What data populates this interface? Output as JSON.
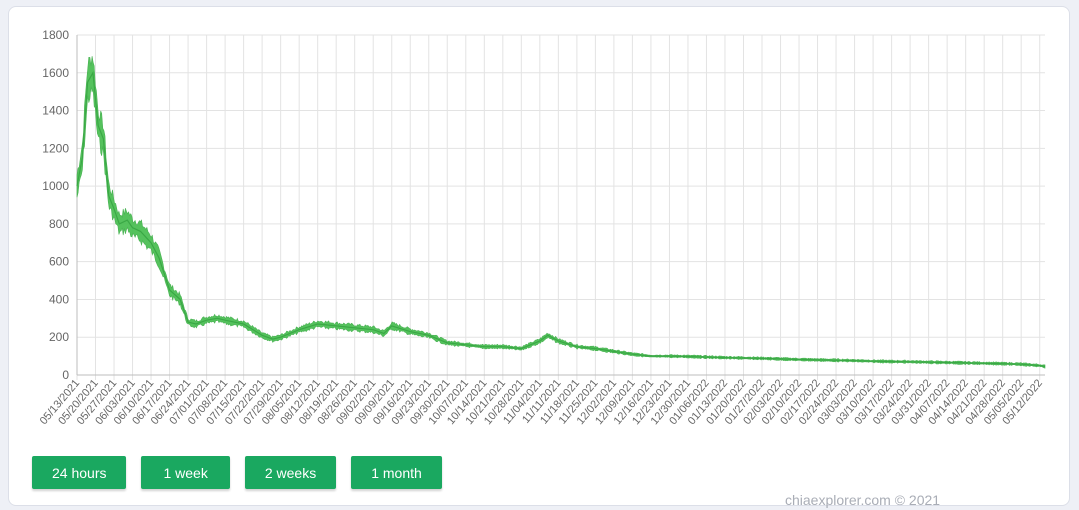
{
  "chart_data": {
    "type": "area",
    "ylim": [
      0,
      1800
    ],
    "yticks": [
      0,
      200,
      400,
      600,
      800,
      1000,
      1200,
      1400,
      1600,
      1800
    ],
    "xticks": [
      "05/13/2021",
      "05/20/2021",
      "05/27/2021",
      "06/03/2021",
      "06/10/2021",
      "06/17/2021",
      "06/24/2021",
      "07/01/2021",
      "07/08/2021",
      "07/15/2021",
      "07/22/2021",
      "07/29/2021",
      "08/05/2021",
      "08/12/2021",
      "08/19/2021",
      "08/26/2021",
      "09/02/2021",
      "09/09/2021",
      "09/16/2021",
      "09/23/2021",
      "09/30/2021",
      "10/07/2021",
      "10/14/2021",
      "10/21/2021",
      "10/28/2021",
      "11/04/2021",
      "11/11/2021",
      "11/18/2021",
      "11/25/2021",
      "12/02/2021",
      "12/09/2021",
      "12/16/2021",
      "12/23/2021",
      "12/30/2021",
      "01/06/2022",
      "01/13/2022",
      "01/20/2022",
      "01/27/2022",
      "02/03/2022",
      "02/10/2022",
      "02/17/2022",
      "02/24/2022",
      "03/03/2022",
      "03/10/2022",
      "03/17/2022",
      "03/24/2022",
      "03/31/2022",
      "04/07/2022",
      "04/14/2022",
      "04/21/2022",
      "04/28/2022",
      "05/05/2022",
      "05/12/2022"
    ],
    "grid": true,
    "color": "#4cbf55",
    "series": [
      {
        "x": [
          "05/13/2021",
          "05/15/2021",
          "05/17/2021",
          "05/19/2021",
          "05/21/2021",
          "05/23/2021",
          "05/25/2021",
          "05/27/2021",
          "05/29/2021",
          "06/01/2021",
          "06/03/2021",
          "06/06/2021",
          "06/10/2021",
          "06/13/2021",
          "06/17/2021",
          "06/21/2021",
          "06/24/2021",
          "06/27/2021",
          "07/01/2021",
          "07/05/2021",
          "07/08/2021",
          "07/15/2021",
          "07/22/2021",
          "07/26/2021",
          "07/29/2021",
          "08/05/2021",
          "08/12/2021",
          "08/19/2021",
          "08/26/2021",
          "09/02/2021",
          "09/06/2021",
          "09/09/2021",
          "09/16/2021",
          "09/23/2021",
          "09/30/2021",
          "10/07/2021",
          "10/14/2021",
          "10/21/2021",
          "10/28/2021",
          "11/04/2021",
          "11/07/2021",
          "11/11/2021",
          "11/18/2021",
          "11/25/2021",
          "12/02/2021",
          "12/09/2021",
          "12/16/2021",
          "12/23/2021",
          "12/30/2021",
          "01/06/2022",
          "01/13/2022",
          "01/20/2022",
          "01/27/2022",
          "02/03/2022",
          "02/10/2022",
          "02/17/2022",
          "02/24/2022",
          "03/03/2022",
          "03/10/2022",
          "03/17/2022",
          "03/24/2022",
          "03/31/2022",
          "04/07/2022",
          "04/14/2022",
          "04/21/2022",
          "04/28/2022",
          "05/05/2022",
          "05/12/2022",
          "05/14/2022"
        ],
        "values": [
          1000,
          1150,
          1550,
          1600,
          1320,
          1250,
          950,
          880,
          800,
          820,
          780,
          760,
          700,
          620,
          450,
          400,
          280,
          270,
          290,
          300,
          290,
          270,
          210,
          190,
          200,
          240,
          270,
          260,
          250,
          240,
          220,
          260,
          230,
          210,
          170,
          160,
          150,
          150,
          140,
          180,
          210,
          180,
          150,
          140,
          125,
          110,
          100,
          100,
          98,
          95,
          92,
          90,
          88,
          85,
          82,
          80,
          78,
          76,
          73,
          71,
          70,
          68,
          66,
          64,
          62,
          60,
          57,
          50,
          45
        ]
      }
    ]
  },
  "buttons": {
    "day": "24 hours",
    "week": "1 week",
    "two_weeks": "2 weeks",
    "month": "1 month"
  },
  "footer": "chiaexplorer.com © 2021"
}
